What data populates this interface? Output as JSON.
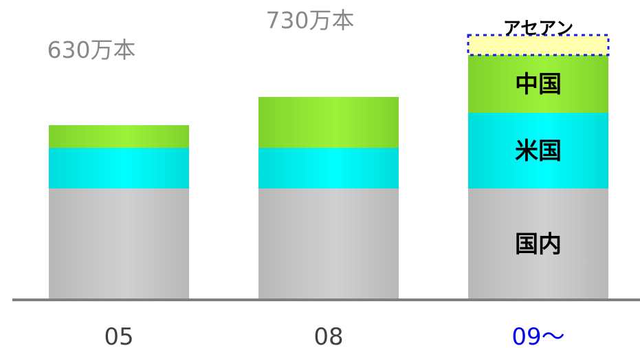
{
  "chart_data": {
    "type": "bar",
    "stacked": true,
    "categories": [
      "05",
      "08",
      "09～"
    ],
    "series": [
      {
        "name": "国内",
        "values": [
          161,
          161,
          161
        ],
        "color": "#c0c0c0"
      },
      {
        "name": "米国",
        "values": [
          59,
          59,
          110
        ],
        "color": "#00e5e5"
      },
      {
        "name": "中国",
        "values": [
          33,
          74,
          84
        ],
        "color": "#88dd33"
      },
      {
        "name": "アセアン",
        "values": [
          0,
          0,
          28
        ],
        "color": "#ffffaa"
      }
    ],
    "totals": [
      {
        "category": "05",
        "label": "630万本"
      },
      {
        "category": "08",
        "label": "730万本"
      }
    ],
    "highlight_category": "09～",
    "highlight_color": "#0000ee",
    "title": "",
    "xlabel": "",
    "ylabel": ""
  }
}
